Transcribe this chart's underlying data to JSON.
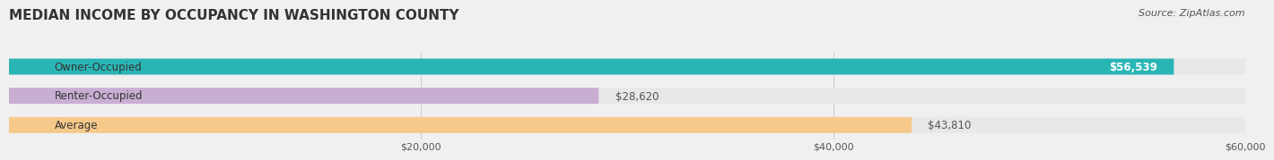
{
  "title": "MEDIAN INCOME BY OCCUPANCY IN WASHINGTON COUNTY",
  "source": "Source: ZipAtlas.com",
  "categories": [
    "Owner-Occupied",
    "Renter-Occupied",
    "Average"
  ],
  "values": [
    56539,
    28620,
    43810
  ],
  "bar_colors": [
    "#2ab5b5",
    "#c9aed4",
    "#f5c98a"
  ],
  "value_labels": [
    "$56,539",
    "$28,620",
    "$43,810"
  ],
  "xlim": [
    0,
    60000
  ],
  "xticks": [
    0,
    20000,
    40000,
    60000
  ],
  "xtick_labels": [
    "$20,000",
    "$40,000",
    "$60,000"
  ],
  "background_color": "#f0f0f0",
  "bar_background_color": "#e8e8e8",
  "title_fontsize": 11,
  "source_fontsize": 8,
  "label_fontsize": 8.5,
  "bar_height": 0.55,
  "bar_label_color": "#ffffff",
  "value_label_color_inside": "#ffffff",
  "value_label_color_outside": "#555555"
}
